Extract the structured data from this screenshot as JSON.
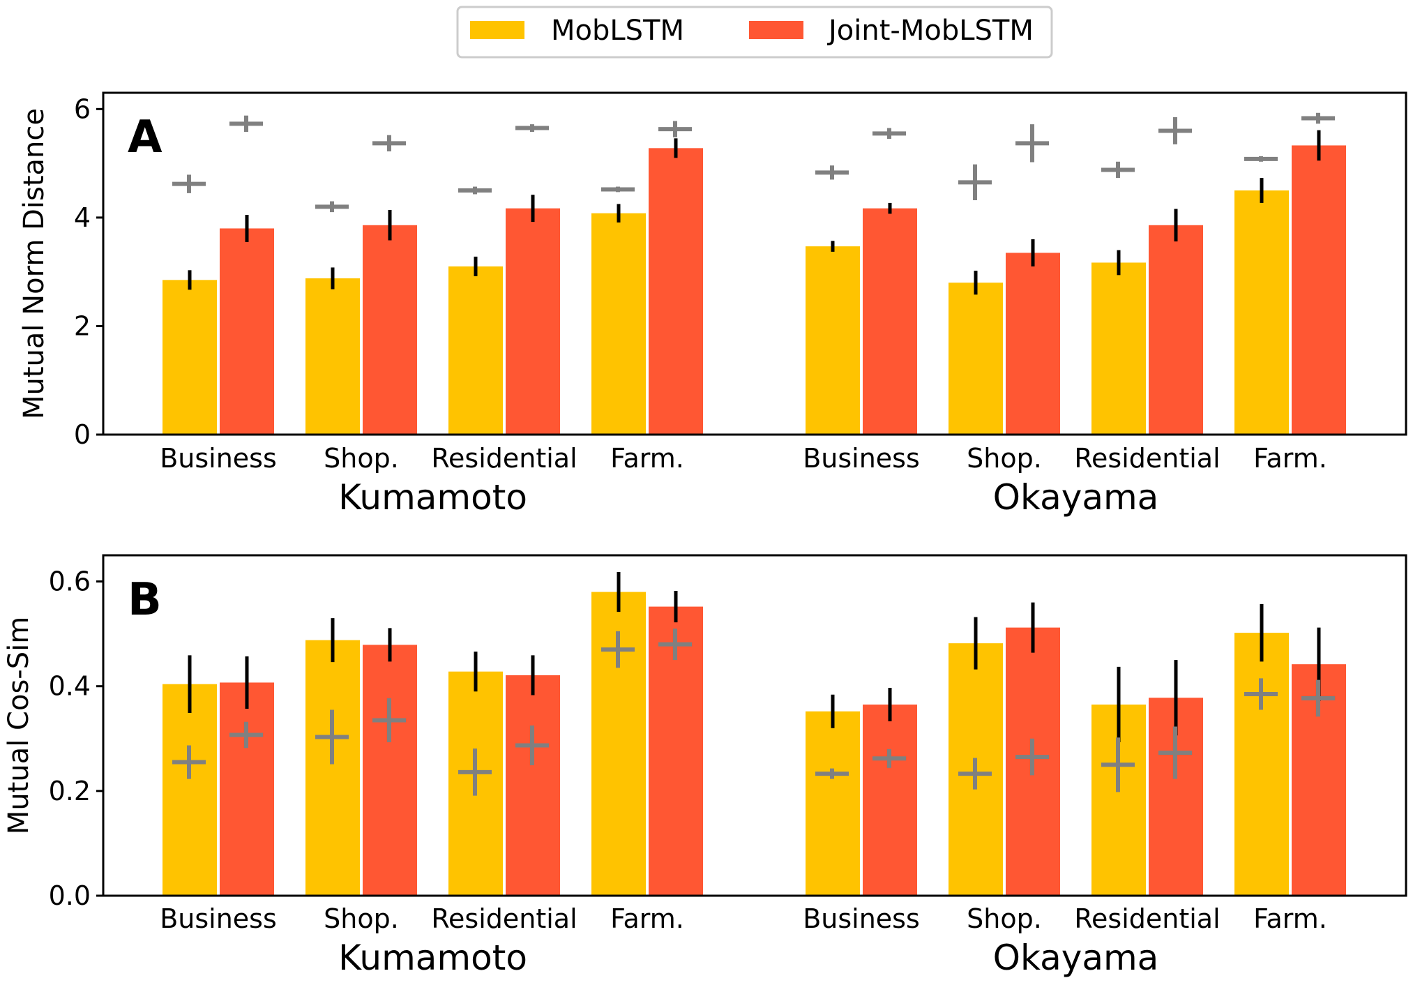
{
  "legend": {
    "items": [
      {
        "label": "MobLSTM",
        "color": "#FFC300"
      },
      {
        "label": "Joint-MobLSTM",
        "color": "#FF5733"
      }
    ]
  },
  "colors": {
    "mob": "#FFC300",
    "joint": "#FF5733",
    "errorbar": "#000000",
    "baseline": "#808080"
  },
  "chart_data": [
    {
      "panel": "A",
      "type": "bar",
      "ylabel": "Mutual Norm Distance",
      "ylim": [
        0,
        6.3
      ],
      "yticks": [
        0,
        2,
        4,
        6
      ],
      "groups": [
        "Kumamoto",
        "Okayama"
      ],
      "categories": [
        "Business",
        "Shop.",
        "Residential",
        "Farm."
      ],
      "series": [
        {
          "name": "MobLSTM",
          "values": [
            [
              2.85,
              2.88,
              3.1,
              4.08
            ],
            [
              3.47,
              2.8,
              3.17,
              4.5
            ]
          ],
          "errors": [
            [
              0.18,
              0.2,
              0.18,
              0.17
            ],
            [
              0.1,
              0.22,
              0.23,
              0.23
            ]
          ],
          "baseline_mean": [
            [
              4.62,
              4.2,
              4.5,
              4.52
            ],
            [
              4.83,
              4.65,
              4.88,
              5.08
            ]
          ],
          "baseline_err": [
            [
              0.17,
              0.1,
              0.07,
              0.05
            ],
            [
              0.13,
              0.33,
              0.15,
              0.05
            ]
          ]
        },
        {
          "name": "Joint-MobLSTM",
          "values": [
            [
              3.8,
              3.86,
              4.17,
              5.28
            ],
            [
              4.17,
              3.35,
              3.86,
              5.33
            ]
          ],
          "errors": [
            [
              0.25,
              0.28,
              0.25,
              0.18
            ],
            [
              0.1,
              0.25,
              0.3,
              0.28
            ]
          ],
          "baseline_mean": [
            [
              5.73,
              5.37,
              5.65,
              5.63
            ],
            [
              5.55,
              5.37,
              5.6,
              5.83
            ]
          ],
          "baseline_err": [
            [
              0.15,
              0.15,
              0.07,
              0.15
            ],
            [
              0.1,
              0.35,
              0.25,
              0.1
            ]
          ]
        }
      ]
    },
    {
      "panel": "B",
      "type": "bar",
      "ylabel": "Mutual Cos-Sim",
      "ylim": [
        0,
        0.65
      ],
      "yticks": [
        0.0,
        0.2,
        0.4,
        0.6
      ],
      "yticklabels": [
        "0.0",
        "0.2",
        "0.4",
        "0.6"
      ],
      "groups": [
        "Kumamoto",
        "Okayama"
      ],
      "categories": [
        "Business",
        "Shop.",
        "Residential",
        "Farm."
      ],
      "series": [
        {
          "name": "MobLSTM",
          "values": [
            [
              0.404,
              0.488,
              0.428,
              0.58
            ],
            [
              0.352,
              0.482,
              0.365,
              0.502
            ]
          ],
          "errors": [
            [
              0.055,
              0.042,
              0.038,
              0.038
            ],
            [
              0.032,
              0.05,
              0.072,
              0.055
            ]
          ],
          "baseline_mean": [
            [
              0.255,
              0.303,
              0.236,
              0.47
            ],
            [
              0.233,
              0.233,
              0.25,
              0.385
            ]
          ],
          "baseline_err": [
            [
              0.032,
              0.052,
              0.045,
              0.035
            ],
            [
              0.01,
              0.03,
              0.052,
              0.03
            ]
          ]
        },
        {
          "name": "Joint-MobLSTM",
          "values": [
            [
              0.407,
              0.479,
              0.421,
              0.552
            ],
            [
              0.365,
              0.512,
              0.378,
              0.442
            ]
          ],
          "errors": [
            [
              0.05,
              0.032,
              0.038,
              0.03
            ],
            [
              0.032,
              0.048,
              0.072,
              0.07
            ]
          ],
          "baseline_mean": [
            [
              0.307,
              0.335,
              0.287,
              0.48
            ],
            [
              0.262,
              0.265,
              0.273,
              0.377
            ]
          ],
          "baseline_err": [
            [
              0.025,
              0.042,
              0.038,
              0.03
            ],
            [
              0.018,
              0.035,
              0.05,
              0.035
            ]
          ]
        }
      ]
    }
  ]
}
